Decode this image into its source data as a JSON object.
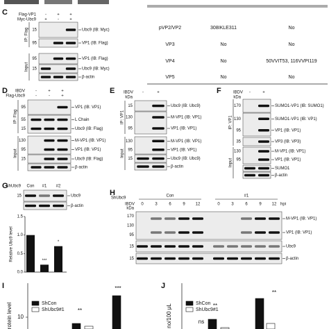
{
  "table": {
    "rows": [
      [
        "pVP2/VP2",
        "308IKLE311",
        "No"
      ],
      [
        "VP3",
        "No",
        "No"
      ],
      [
        "VP4",
        "No",
        "50VVIT53, 116VVPI119"
      ],
      [
        "VP5",
        "No",
        "No"
      ]
    ]
  },
  "panels": [
    {
      "label": "C",
      "treatments": [
        {
          "name": "Flag-VP1",
          "signs": [
            "-",
            "+",
            "+"
          ]
        },
        {
          "name": "Myc-Ubc9",
          "signs": [
            "+",
            "-",
            "+"
          ]
        }
      ],
      "blots": [
        {
          "kda": [
            "15"
          ],
          "labels": [
            "Ubc9 (IB: Myc)"
          ]
        },
        {
          "kda": [
            "95"
          ],
          "labels": [
            "VP1 (IB: Flag)"
          ]
        },
        {
          "kda": [
            "95"
          ],
          "labels": [
            "VP1 (IB: Flag)"
          ]
        },
        {
          "kda": [
            "15"
          ],
          "labels": [
            "Ubc9 (IB: Myc)"
          ]
        },
        {
          "kda": [],
          "labels": [
            "β-actin"
          ]
        }
      ],
      "groups": [
        "IP: Flag",
        "Input"
      ]
    },
    {
      "label": "D",
      "treatments": [
        {
          "name": "IBDV",
          "signs": [
            "-",
            "+",
            "+"
          ]
        },
        {
          "name": "Flag-Ubc9",
          "signs": [
            "-",
            "-",
            "+"
          ]
        }
      ],
      "blots": [
        {
          "kda": [
            "95"
          ],
          "labels": [
            "VP1 (IB: VP1)"
          ]
        },
        {
          "kda": [
            "55",
            "15"
          ],
          "labels": [
            "L Chain",
            "Ubc9 (IB: Flag)"
          ]
        },
        {
          "kda": [
            "130",
            "95"
          ],
          "labels": [
            "M-VP1 (IB: VP1)",
            "VP1 (IB: VP1)"
          ]
        },
        {
          "kda": [
            "15"
          ],
          "labels": [
            "Ubc9 (IB: Flag)"
          ]
        },
        {
          "kda": [],
          "labels": [
            "β-actin"
          ]
        }
      ],
      "groups": [
        "IP: Flag",
        "Input"
      ]
    },
    {
      "label": "E",
      "kda_unit": "kDa",
      "treatments": [
        {
          "name": "IBDV",
          "signs": [
            "-",
            "+"
          ]
        }
      ],
      "blots": [
        {
          "kda": [
            "15"
          ],
          "labels": [
            "Ubc9 (IB: Ubc9)"
          ]
        },
        {
          "kda": [
            "130",
            "95"
          ],
          "labels": [
            "M-VP1 (IB: VP1)",
            "VP1 (IB: VP1)"
          ]
        },
        {
          "kda": [
            "130",
            "95"
          ],
          "labels": [
            "M-VP1 (IB: VP1)",
            "VP1 (IB: VP1)"
          ]
        },
        {
          "kda": [
            "15"
          ],
          "labels": [
            "Ubc9 (IB: Ubc9)"
          ]
        },
        {
          "kda": [],
          "labels": [
            "β-actin"
          ]
        }
      ],
      "groups": [
        "IP: VP1",
        "Input"
      ]
    },
    {
      "label": "F",
      "kda_unit": "kDa",
      "treatments": [
        {
          "name": "IBDV",
          "signs": [
            "-",
            "+"
          ]
        }
      ],
      "blots": [
        {
          "kda": [
            "170"
          ],
          "labels": [
            "SUMO1-VP1 (IB: SUMO1)"
          ]
        },
        {
          "kda": [
            "130",
            "95"
          ],
          "labels": [
            "SUMO1-VP1 (IB: VP1)",
            "VP1 (IB: VP1)"
          ]
        },
        {
          "kda": [
            "35"
          ],
          "labels": [
            "VP3 (IB: VP3)"
          ]
        },
        {
          "kda": [
            "130",
            "95"
          ],
          "labels": [
            "M-VP1 (IB: VP1)",
            "VP1 (IB: VP1)"
          ]
        },
        {
          "kda": [],
          "labels": [
            "SUMO1"
          ]
        },
        {
          "kda": [],
          "labels": [
            "β-actin"
          ]
        }
      ],
      "groups": [
        "IP: VP1",
        "Input"
      ]
    },
    {
      "label": "G",
      "treatments": [
        {
          "name": "ShUbc9",
          "signs": [
            "Con",
            "#1",
            "#2"
          ]
        }
      ],
      "blots": [
        {
          "kda": [
            "15"
          ],
          "labels": [
            "Ubc9"
          ]
        },
        {
          "kda": [],
          "labels": [
            "β-actin"
          ]
        }
      ],
      "chart": {
        "type": "bar",
        "ylabel": "Relative Ubc9 level",
        "values": [
          1.0,
          0.2,
          0.7
        ],
        "significance": [
          null,
          "***",
          "*"
        ],
        "ylim": [
          0,
          1.5
        ],
        "yticks": [
          {
            "value": 0,
            "label": "0.0"
          },
          {
            "value": 0.5,
            "label": "0.5"
          },
          {
            "value": 1,
            "label": "1.0"
          },
          {
            "value": 1.5,
            "label": "1.5"
          }
        ]
      }
    },
    {
      "label": "H",
      "kda_unit": "kDa",
      "series_header": {
        "name": "ShUbc9",
        "groups": [
          "Con",
          "#1"
        ]
      },
      "unit": "hpi",
      "treatments": [
        {
          "name": "IBDV",
          "signs": [
            "0",
            "3",
            "6",
            "9",
            "12",
            "0",
            "3",
            "6",
            "9",
            "12"
          ]
        }
      ],
      "blots": [
        {
          "kda": [
            "170",
            "130",
            "95"
          ],
          "labels": [
            "M-VP1 (IB: VP1)",
            "VP1 (IB: VP1)"
          ]
        },
        {
          "kda": [
            "15"
          ],
          "labels": [
            "Ubc9"
          ]
        },
        {
          "kda": [
            "15"
          ],
          "labels": [
            "β-actin"
          ]
        }
      ]
    }
  ],
  "bottom": [
    {
      "label": "I",
      "ylabel": "rotein level",
      "legend": [
        "ShCon",
        "ShUbc9#1"
      ],
      "ytick": 10,
      "annotations": [
        "**",
        "***"
      ]
    },
    {
      "label": "J",
      "ylabel": "no/100 μL",
      "legend": [
        "ShCon",
        "ShUbc9#1"
      ],
      "annotations": [
        "ns",
        "**",
        "**"
      ]
    }
  ]
}
